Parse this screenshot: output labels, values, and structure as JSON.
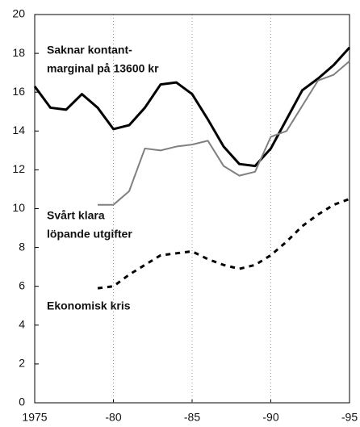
{
  "chart_data": {
    "type": "line",
    "x": [
      1975,
      1976,
      1977,
      1978,
      1979,
      1980,
      1981,
      1982,
      1983,
      1984,
      1985,
      1986,
      1987,
      1988,
      1989,
      1990,
      1991,
      1992,
      1993,
      1994,
      1995
    ],
    "series": [
      {
        "color": "#000000",
        "width": 3,
        "dash": "none",
        "values": [
          16.3,
          15.2,
          15.1,
          15.9,
          15.2,
          14.1,
          14.3,
          15.2,
          16.4,
          16.5,
          15.9,
          14.6,
          13.2,
          12.3,
          12.2,
          13.1,
          14.6,
          16.1,
          16.7,
          17.4,
          18.3
        ]
      },
      {
        "color": "#808080",
        "width": 2,
        "dash": "none",
        "values": [
          null,
          null,
          null,
          null,
          10.2,
          10.2,
          10.9,
          13.1,
          13.0,
          13.2,
          13.3,
          13.5,
          12.2,
          11.7,
          11.9,
          13.7,
          14.0,
          15.3,
          16.6,
          16.9,
          17.6
        ]
      },
      {
        "color": "#000000",
        "width": 3,
        "dash": "6 6",
        "values": [
          null,
          null,
          null,
          null,
          5.9,
          6.0,
          6.6,
          7.1,
          7.6,
          7.7,
          7.8,
          7.4,
          7.1,
          6.9,
          7.1,
          7.6,
          8.3,
          9.1,
          9.7,
          10.2,
          10.5
        ]
      }
    ],
    "annotations": [
      {
        "lines": [
          "Saknar kontant-",
          "marginal på 13600 kr"
        ]
      },
      {
        "lines": [
          "Svårt klara",
          "löpande utgifter"
        ]
      },
      {
        "lines": [
          "Ekonomisk kris"
        ]
      }
    ],
    "xlim": [
      1975,
      1995
    ],
    "xticks": [
      1975,
      {
        "value": 1980,
        "label": "-80"
      },
      {
        "value": 1985,
        "label": "-85"
      },
      {
        "value": 1990,
        "label": "-90"
      },
      {
        "value": 1995,
        "label": "-95"
      }
    ],
    "ylim": [
      0,
      20
    ],
    "yticks": [
      0,
      2,
      4,
      6,
      8,
      10,
      12,
      14,
      16,
      18,
      20
    ],
    "grid": true
  }
}
